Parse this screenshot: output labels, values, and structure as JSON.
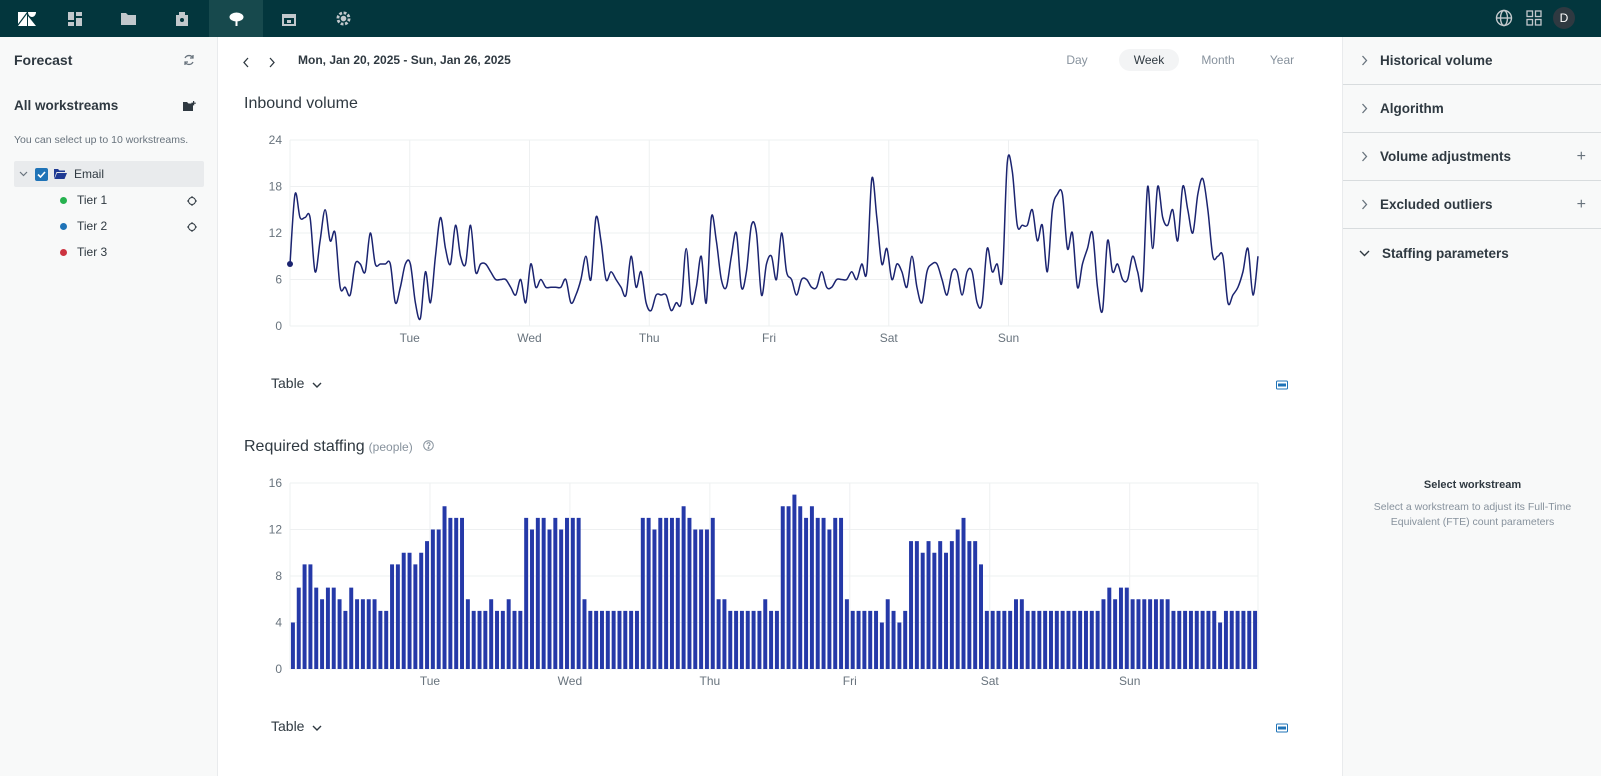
{
  "nav": {
    "icons": [
      "zendesk-logo",
      "dashboard-icon",
      "folder-icon",
      "contacts-icon",
      "forecast-icon",
      "calendar-icon",
      "settings-icon"
    ],
    "avatar_initial": "D"
  },
  "sidebar": {
    "title": "Forecast",
    "section": "All workstreams",
    "hint": "You can select up to 10 workstreams.",
    "folder": "Email",
    "items": [
      {
        "label": "Tier 1",
        "color": "#26b24f"
      },
      {
        "label": "Tier 2",
        "color": "#1f73b7"
      },
      {
        "label": "Tier 3",
        "color": "#cc3340"
      }
    ]
  },
  "toolbar": {
    "date_range": "Mon, Jan 20, 2025 - Sun, Jan 26, 2025",
    "periods": [
      "Day",
      "Week",
      "Month",
      "Year"
    ],
    "active_period": "Week"
  },
  "inbound": {
    "title": "Inbound volume",
    "table_label": "Table"
  },
  "staffing": {
    "title": "Required staffing",
    "unit": "(people)",
    "table_label": "Table"
  },
  "right_panel": {
    "sections": [
      "Historical volume",
      "Algorithm",
      "Volume adjustments",
      "Excluded outliers",
      "Staffing parameters"
    ],
    "empty_title": "Select workstream",
    "empty_text": "Select a workstream to adjust its Full-Time Equivalent (FTE) count parameters"
  },
  "chart_data": [
    {
      "type": "line",
      "title": "Inbound volume",
      "color": "#1b2470",
      "x_tick_labels": [
        "Tue",
        "Wed",
        "Thu",
        "Fri",
        "Sat",
        "Sun"
      ],
      "y_ticks": [
        0,
        6,
        12,
        18,
        24
      ],
      "ylim": [
        0,
        24
      ],
      "points_per_day": 24,
      "values": [
        8,
        17,
        14,
        14,
        14,
        7,
        11,
        15,
        11,
        12,
        5,
        5,
        4,
        8,
        8,
        7,
        12,
        8,
        8,
        8,
        8,
        3,
        5,
        8,
        8,
        3,
        1,
        7,
        3,
        9,
        14,
        10,
        8,
        13,
        9,
        8,
        13,
        7,
        8,
        8,
        7,
        6,
        6,
        6,
        5,
        4,
        6,
        3,
        8,
        5,
        6,
        5,
        5,
        5,
        5,
        6,
        3,
        4,
        6,
        9,
        6,
        14,
        11,
        6,
        7,
        6,
        5,
        4,
        9,
        5,
        7,
        3,
        2,
        4,
        4,
        4,
        2,
        3,
        3,
        10,
        3,
        5,
        9,
        3,
        14,
        11,
        6,
        5,
        9,
        12,
        5,
        7,
        13,
        12,
        4,
        8,
        9,
        6,
        12,
        7,
        6,
        4,
        6,
        6,
        5,
        5,
        7,
        5,
        5,
        6,
        6,
        6,
        7,
        6,
        8,
        7,
        19,
        14,
        8,
        10,
        6,
        8,
        7,
        5,
        9,
        5,
        3,
        7,
        8,
        8,
        6,
        4,
        7,
        7,
        4,
        7,
        7,
        3,
        3,
        10,
        7,
        8,
        6,
        21,
        20,
        13,
        13,
        13,
        15,
        11,
        13,
        7,
        15,
        17,
        17,
        10,
        12,
        5,
        8,
        10,
        12,
        5,
        2,
        11,
        7,
        8,
        6,
        6,
        9,
        7,
        5,
        18,
        10,
        18,
        14,
        13,
        15,
        11,
        18,
        15,
        12,
        17,
        19,
        15,
        9,
        9,
        9,
        3,
        4,
        5,
        7,
        10,
        4,
        9
      ]
    },
    {
      "type": "bar",
      "title": "Required staffing",
      "color": "#2539a8",
      "x_tick_labels": [
        "Tue",
        "Wed",
        "Thu",
        "Fri",
        "Sat",
        "Sun"
      ],
      "y_ticks": [
        0,
        4,
        8,
        12,
        16
      ],
      "ylim": [
        0,
        16
      ],
      "points_per_day": 24,
      "values": [
        4,
        7,
        9,
        9,
        7,
        6,
        7,
        7,
        6,
        5,
        7,
        6,
        6,
        6,
        6,
        5,
        5,
        9,
        9,
        10,
        10,
        9,
        10,
        11,
        12,
        12,
        14,
        13,
        13,
        13,
        6,
        5,
        5,
        5,
        6,
        5,
        5,
        6,
        5,
        5,
        13,
        12,
        13,
        13,
        12,
        13,
        12,
        13,
        13,
        13,
        6,
        5,
        5,
        5,
        5,
        5,
        5,
        5,
        5,
        5,
        13,
        13,
        12,
        13,
        13,
        13,
        13,
        14,
        13,
        12,
        12,
        12,
        13,
        6,
        6,
        5,
        5,
        5,
        5,
        5,
        5,
        6,
        5,
        5,
        14,
        14,
        15,
        14,
        13,
        14,
        13,
        13,
        12,
        13,
        13,
        6,
        5,
        5,
        5,
        5,
        5,
        4,
        6,
        5,
        4,
        5,
        11,
        11,
        10,
        11,
        10,
        11,
        10,
        11,
        12,
        13,
        11,
        11,
        9,
        5,
        5,
        5,
        5,
        5,
        6,
        6,
        5,
        5,
        5,
        5,
        5,
        5,
        5,
        5,
        5,
        5,
        5,
        5,
        5,
        6,
        7,
        6,
        7,
        7,
        6,
        6,
        6,
        6,
        6,
        6,
        6,
        5,
        5,
        5,
        5,
        5,
        5,
        5,
        5,
        4,
        5,
        5,
        5,
        5,
        5,
        5
      ]
    }
  ]
}
